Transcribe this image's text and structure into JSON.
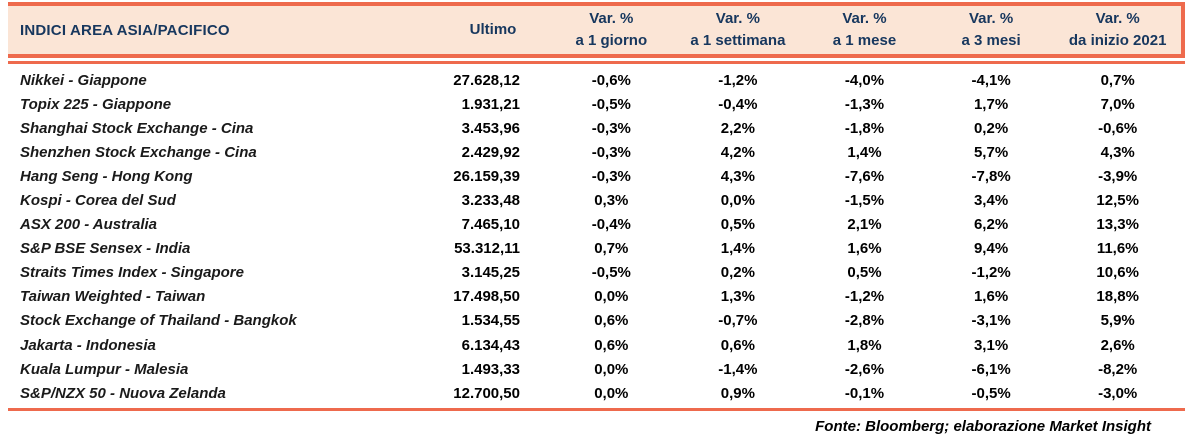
{
  "colors": {
    "accent": "#EE6A4D",
    "header_bg": "#FBE5D6",
    "header_text": "#17375E",
    "body_text": "#000000"
  },
  "table": {
    "title": "INDICI AREA ASIA/PACIFICO",
    "col_ultimo": "Ultimo",
    "var_columns": [
      {
        "top": "Var. %",
        "bottom": "a 1 giorno"
      },
      {
        "top": "Var. %",
        "bottom": "a 1 settimana"
      },
      {
        "top": "Var. %",
        "bottom": "a 1 mese"
      },
      {
        "top": "Var. %",
        "bottom": "a 3 mesi"
      },
      {
        "top": "Var. %",
        "bottom": "da inizio 2021"
      }
    ],
    "rows": [
      {
        "name": "Nikkei - Giappone",
        "ultimo": "27.628,12",
        "d1": "-0,6%",
        "w1": "-1,2%",
        "m1": "-4,0%",
        "m3": "-4,1%",
        "ytd": "0,7%"
      },
      {
        "name": "Topix 225 - Giappone",
        "ultimo": "1.931,21",
        "d1": "-0,5%",
        "w1": "-0,4%",
        "m1": "-1,3%",
        "m3": "1,7%",
        "ytd": "7,0%"
      },
      {
        "name": "Shanghai Stock Exchange - Cina",
        "ultimo": "3.453,96",
        "d1": "-0,3%",
        "w1": "2,2%",
        "m1": "-1,8%",
        "m3": "0,2%",
        "ytd": "-0,6%"
      },
      {
        "name": "Shenzhen Stock Exchange - Cina",
        "ultimo": "2.429,92",
        "d1": "-0,3%",
        "w1": "4,2%",
        "m1": "1,4%",
        "m3": "5,7%",
        "ytd": "4,3%"
      },
      {
        "name": "Hang Seng - Hong Kong",
        "ultimo": "26.159,39",
        "d1": "-0,3%",
        "w1": "4,3%",
        "m1": "-7,6%",
        "m3": "-7,8%",
        "ytd": "-3,9%"
      },
      {
        "name": "Kospi - Corea del Sud",
        "ultimo": "3.233,48",
        "d1": "0,3%",
        "w1": "0,0%",
        "m1": "-1,5%",
        "m3": "3,4%",
        "ytd": "12,5%"
      },
      {
        "name": "ASX 200 - Australia",
        "ultimo": "7.465,10",
        "d1": "-0,4%",
        "w1": "0,5%",
        "m1": "2,1%",
        "m3": "6,2%",
        "ytd": "13,3%"
      },
      {
        "name": "S&P BSE Sensex - India",
        "ultimo": "53.312,11",
        "d1": "0,7%",
        "w1": "1,4%",
        "m1": "1,6%",
        "m3": "9,4%",
        "ytd": "11,6%"
      },
      {
        "name": "Straits Times Index - Singapore",
        "ultimo": "3.145,25",
        "d1": "-0,5%",
        "w1": "0,2%",
        "m1": "0,5%",
        "m3": "-1,2%",
        "ytd": "10,6%"
      },
      {
        "name": "Taiwan Weighted - Taiwan",
        "ultimo": "17.498,50",
        "d1": "0,0%",
        "w1": "1,3%",
        "m1": "-1,2%",
        "m3": "1,6%",
        "ytd": "18,8%"
      },
      {
        "name": "Stock Exchange of Thailand - Bangkok",
        "ultimo": "1.534,55",
        "d1": "0,6%",
        "w1": "-0,7%",
        "m1": "-2,8%",
        "m3": "-3,1%",
        "ytd": "5,9%"
      },
      {
        "name": "Jakarta - Indonesia",
        "ultimo": "6.134,43",
        "d1": "0,6%",
        "w1": "0,6%",
        "m1": "1,8%",
        "m3": "3,1%",
        "ytd": "2,6%"
      },
      {
        "name": "Kuala Lumpur - Malesia",
        "ultimo": "1.493,33",
        "d1": "0,0%",
        "w1": "-1,4%",
        "m1": "-2,6%",
        "m3": "-6,1%",
        "ytd": "-8,2%"
      },
      {
        "name": "S&P/NZX 50 - Nuova Zelanda",
        "ultimo": "12.700,50",
        "d1": "0,0%",
        "w1": "0,9%",
        "m1": "-0,1%",
        "m3": "-0,5%",
        "ytd": "-3,0%"
      }
    ],
    "footer": "Fonte: Bloomberg; elaborazione Market Insight"
  }
}
